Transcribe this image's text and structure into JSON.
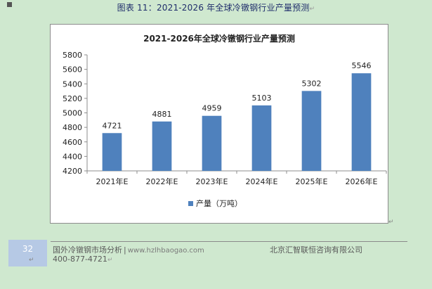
{
  "caption": {
    "text": "图表  11：2021-2026 年全球冷镦钢行业产量预测",
    "para_mark": "↵"
  },
  "chart_data": {
    "type": "bar",
    "title": "2021-2026年全球冷镦钢行业产量预测",
    "categories": [
      "2021年E",
      "2022年E",
      "2023年E",
      "2024年E",
      "2025年E",
      "2026年E"
    ],
    "series": [
      {
        "name": "产量（万吨）",
        "values": [
          4721,
          4881,
          4959,
          5103,
          5302,
          5546
        ],
        "color": "#4f81bd"
      }
    ],
    "ylim": [
      4200,
      5800
    ],
    "yticks": [
      4200,
      4400,
      4600,
      4800,
      5000,
      5200,
      5400,
      5600,
      5800
    ],
    "xlabel": "",
    "ylabel": "",
    "grid": false,
    "legend": "bottom"
  },
  "footer": {
    "page_number": "32",
    "left_text": "国外冷镦钢市场分析",
    "separator": "|",
    "url": "www.hzlhbaogao.com",
    "phone": "400-877-4721",
    "company": "北京汇智联恒咨询有限公司",
    "para_mark": "↵"
  }
}
